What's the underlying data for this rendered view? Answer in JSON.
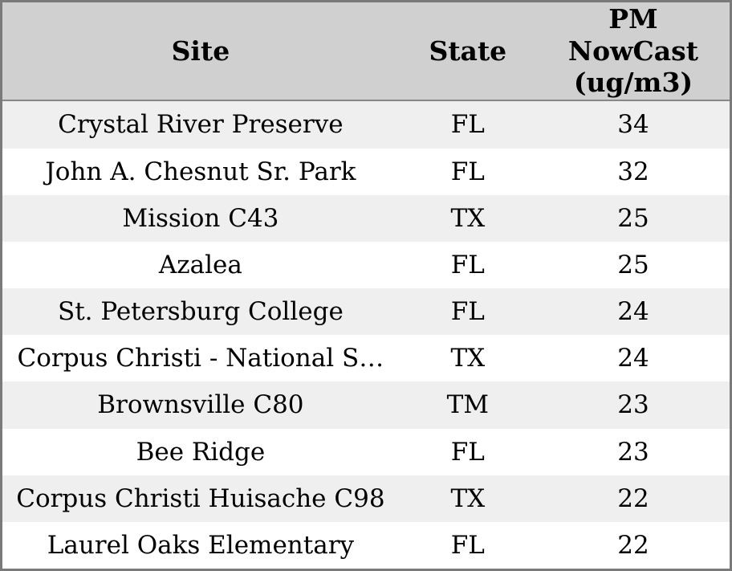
{
  "chart_data": {
    "type": "table",
    "columns": [
      "Site",
      "State",
      "PM NowCast (ug/m3)"
    ],
    "rows": [
      [
        "Crystal River Preserve",
        "FL",
        34
      ],
      [
        "John A. Chesnut Sr. Park",
        "FL",
        32
      ],
      [
        "Mission C43",
        "TX",
        25
      ],
      [
        "Azalea",
        "FL",
        25
      ],
      [
        "St. Petersburg College",
        "FL",
        24
      ],
      [
        "Corpus Christi - National S…",
        "TX",
        24
      ],
      [
        "Brownsville C80",
        "TM",
        23
      ],
      [
        "Bee Ridge",
        "FL",
        23
      ],
      [
        "Corpus Christi Huisache C98",
        "TX",
        22
      ],
      [
        "Laurel Oaks Elementary",
        "FL",
        22
      ]
    ],
    "layout": {
      "header_position": "top",
      "zebra_striping": true,
      "text_align": "center",
      "grid": "off"
    }
  },
  "colors": {
    "frame_border": "#7a7a7a",
    "header_bg": "#d0d0d0",
    "header_divider": "#878787",
    "row_alt_bg": "#efefef",
    "row_bg": "#ffffff",
    "text": "#000000"
  }
}
